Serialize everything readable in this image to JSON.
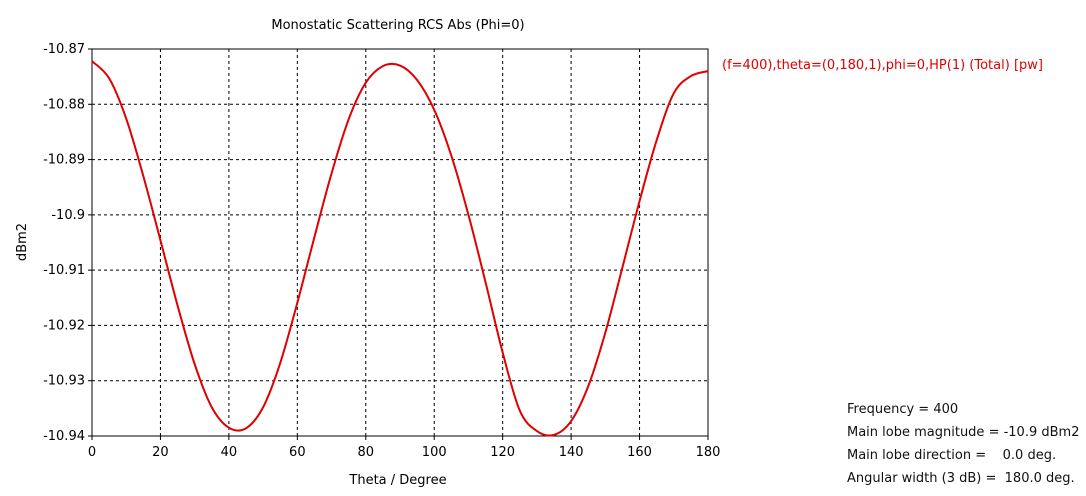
{
  "chart_data": {
    "type": "line",
    "title": "Monostatic Scattering RCS Abs (Phi=0)",
    "xlabel": "Theta / Degree",
    "ylabel": "dBm2",
    "xlim": [
      0,
      180
    ],
    "ylim": [
      -10.94,
      -10.87
    ],
    "xticks": [
      "0",
      "20",
      "40",
      "60",
      "80",
      "100",
      "120",
      "140",
      "160",
      "180"
    ],
    "yticks": [
      "-10.87",
      "-10.88",
      "-10.89",
      "-10.9",
      "-10.91",
      "-10.92",
      "-10.93",
      "-10.94"
    ],
    "grid": true,
    "legend_position": "top-right",
    "series": [
      {
        "name": "(f=400),theta=(0,180,1),phi=0,HP(1) (Total) [pw]",
        "color": "#e00000",
        "x": [
          0,
          5,
          10,
          15,
          20,
          25,
          30,
          35,
          40,
          45,
          50,
          55,
          60,
          65,
          70,
          75,
          80,
          85,
          90,
          95,
          100,
          105,
          110,
          115,
          120,
          125,
          130,
          135,
          140,
          145,
          150,
          155,
          160,
          165,
          170,
          175,
          180
        ],
        "y": [
          -10.8722,
          -10.8753,
          -10.8826,
          -10.893,
          -10.9046,
          -10.9164,
          -10.927,
          -10.9348,
          -10.9385,
          -10.9386,
          -10.9348,
          -10.9268,
          -10.9159,
          -10.904,
          -10.8925,
          -10.8827,
          -10.8761,
          -10.8731,
          -10.873,
          -10.8756,
          -10.881,
          -10.8893,
          -10.9,
          -10.9122,
          -10.9249,
          -10.9354,
          -10.9391,
          -10.9398,
          -10.9373,
          -10.931,
          -10.9213,
          -10.9095,
          -10.8975,
          -10.8865,
          -10.878,
          -10.8749,
          -10.874
        ]
      }
    ]
  },
  "info": {
    "frequency": "Frequency = 400",
    "main_lobe_magnitude": "Main lobe magnitude = -10.9 dBm2",
    "main_lobe_direction": "Main lobe direction =    0.0 deg.",
    "angular_width": "Angular width (3 dB) =  180.0 deg."
  }
}
